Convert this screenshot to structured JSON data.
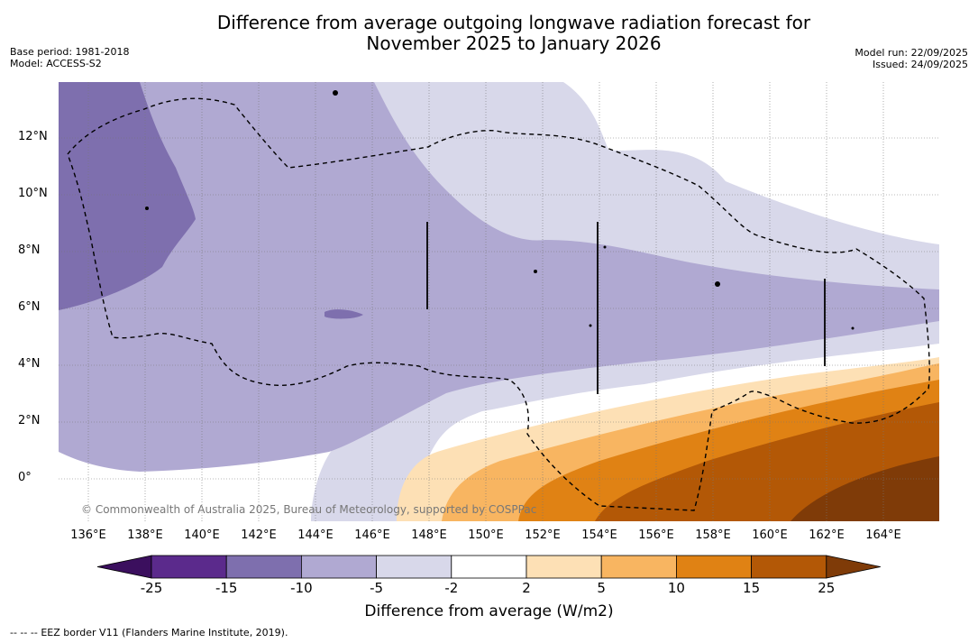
{
  "title": {
    "line1": "Difference from average outgoing longwave radiation forecast for",
    "line2": "November 2025 to January 2026"
  },
  "meta_left": {
    "base_period": "Base period: 1981-2018",
    "model": "Model: ACCESS-S2"
  },
  "meta_right": {
    "model_run": "Model run: 22/09/2025",
    "issued": "Issued: 24/09/2025"
  },
  "map": {
    "copyright": "© Commonwealth of Australia 2025, Bureau of Meteorology, supported by COSPPac",
    "x_ticks": [
      "136°E",
      "138°E",
      "140°E",
      "142°E",
      "144°E",
      "146°E",
      "148°E",
      "150°E",
      "152°E",
      "154°E",
      "156°E",
      "158°E",
      "160°E",
      "162°E",
      "164°E"
    ],
    "y_ticks": [
      "12°N",
      "10°N",
      "8°N",
      "6°N",
      "4°N",
      "2°N",
      "0°"
    ]
  },
  "colorbar": {
    "labels": [
      "-25",
      "-15",
      "-10",
      "-5",
      "-2",
      "2",
      "5",
      "10",
      "15",
      "25"
    ],
    "colors": [
      "#5b2a8c",
      "#7e6fae",
      "#b0a9d2",
      "#d8d8ea",
      "#ffffff",
      "#fde0b5",
      "#f8b561",
      "#e08214",
      "#b35806",
      "#7f3b08"
    ],
    "low_extend": "#3b0f5e",
    "high_extend": "#7f3b08",
    "title": "Difference from average (W/m2)"
  },
  "footer": {
    "legend_symbol": "--  --  --",
    "legend_text": "EEZ border V11 (Flanders Marine Institute, 2019)."
  }
}
